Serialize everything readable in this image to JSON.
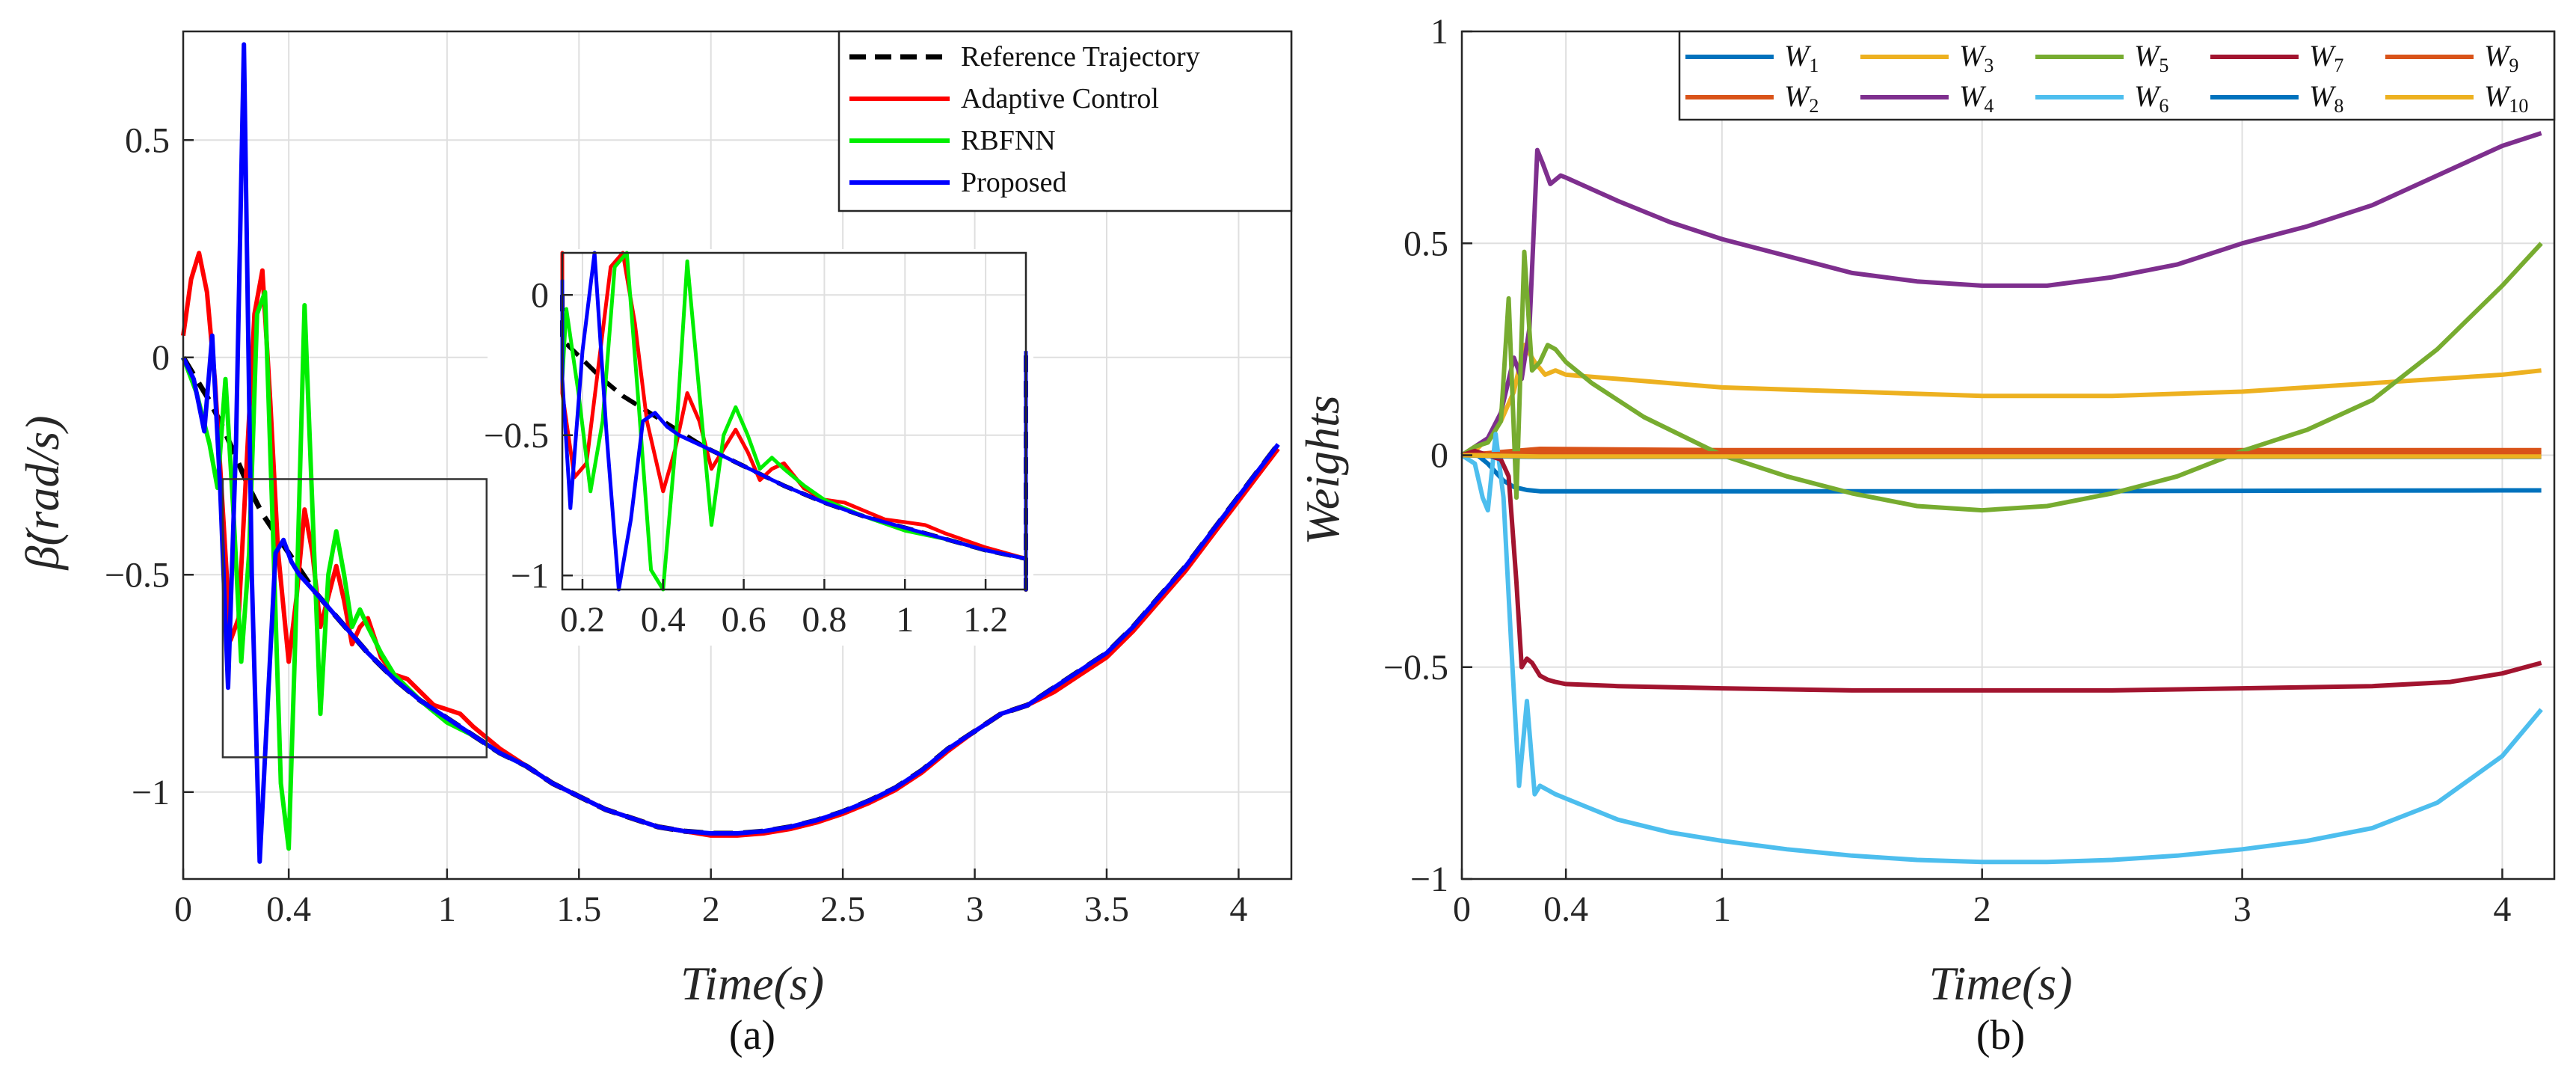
{
  "chart_data": [
    {
      "type": "line",
      "panel": "a",
      "caption": "(a)",
      "title": "",
      "xlabel": "Time(s)",
      "ylabel": "β̇(rad/s)",
      "xlim": [
        0,
        4.2
      ],
      "ylim": [
        -1.2,
        0.75
      ],
      "xticks": [
        0,
        0.4,
        1,
        1.5,
        2,
        2.5,
        3,
        3.5,
        4
      ],
      "xtick_labels": [
        "0",
        "0.4",
        "1",
        "1.5",
        "2",
        "2.5",
        "3",
        "3.5",
        "4"
      ],
      "yticks": [
        -1,
        -0.5,
        0,
        0.5
      ],
      "ytick_labels": [
        "−1",
        "−0.5",
        "0",
        "0.5"
      ],
      "grid": true,
      "legend_position": "top-right",
      "series": [
        {
          "name": "Reference Trajectory",
          "color": "#000000",
          "dash": true,
          "x": [
            0.0,
            0.05,
            0.1,
            0.15,
            0.2,
            0.25,
            0.3,
            0.4,
            0.5,
            0.6,
            0.7,
            0.8,
            0.9,
            1.0,
            1.1,
            1.2,
            1.3,
            1.4,
            1.5,
            1.6,
            1.7,
            1.8,
            1.9,
            2.0,
            2.1,
            2.2,
            2.3,
            2.4,
            2.5,
            2.6,
            2.7,
            2.8,
            2.9,
            3.0,
            3.1,
            3.2,
            3.3,
            3.4,
            3.5,
            3.6,
            3.7,
            3.8,
            3.9,
            4.0,
            4.1,
            4.15
          ],
          "y": [
            0.0,
            -0.05,
            -0.1,
            -0.16,
            -0.23,
            -0.3,
            -0.36,
            -0.45,
            -0.54,
            -0.61,
            -0.68,
            -0.74,
            -0.79,
            -0.83,
            -0.87,
            -0.91,
            -0.94,
            -0.98,
            -1.01,
            -1.04,
            -1.06,
            -1.08,
            -1.09,
            -1.095,
            -1.095,
            -1.09,
            -1.08,
            -1.065,
            -1.045,
            -1.02,
            -0.99,
            -0.95,
            -0.9,
            -0.86,
            -0.82,
            -0.8,
            -0.76,
            -0.72,
            -0.68,
            -0.62,
            -0.55,
            -0.48,
            -0.4,
            -0.32,
            -0.24,
            -0.2
          ]
        },
        {
          "name": "Adaptive Control",
          "color": "#ff0000",
          "dash": false,
          "x": [
            0.0,
            0.03,
            0.06,
            0.09,
            0.12,
            0.15,
            0.18,
            0.21,
            0.24,
            0.27,
            0.3,
            0.33,
            0.36,
            0.4,
            0.43,
            0.46,
            0.49,
            0.52,
            0.55,
            0.58,
            0.61,
            0.64,
            0.67,
            0.7,
            0.75,
            0.8,
            0.85,
            0.9,
            0.95,
            1.0,
            1.05,
            1.1,
            1.2,
            1.3,
            1.4,
            1.5,
            1.6,
            1.7,
            1.8,
            1.9,
            2.0,
            2.1,
            2.2,
            2.3,
            2.4,
            2.5,
            2.6,
            2.7,
            2.8,
            2.9,
            3.0,
            3.1,
            3.2,
            3.3,
            3.4,
            3.5,
            3.6,
            3.7,
            3.8,
            3.9,
            4.0,
            4.1,
            4.15
          ],
          "y": [
            0.05,
            0.18,
            0.24,
            0.15,
            -0.05,
            -0.35,
            -0.65,
            -0.6,
            -0.25,
            0.1,
            0.2,
            -0.1,
            -0.45,
            -0.7,
            -0.55,
            -0.35,
            -0.45,
            -0.62,
            -0.55,
            -0.48,
            -0.56,
            -0.66,
            -0.62,
            -0.6,
            -0.69,
            -0.73,
            -0.74,
            -0.77,
            -0.8,
            -0.81,
            -0.82,
            -0.85,
            -0.9,
            -0.94,
            -0.98,
            -1.01,
            -1.04,
            -1.06,
            -1.08,
            -1.09,
            -1.1,
            -1.1,
            -1.095,
            -1.085,
            -1.07,
            -1.05,
            -1.025,
            -0.995,
            -0.955,
            -0.905,
            -0.86,
            -0.82,
            -0.8,
            -0.77,
            -0.73,
            -0.69,
            -0.63,
            -0.56,
            -0.49,
            -0.41,
            -0.33,
            -0.25,
            -0.21
          ]
        },
        {
          "name": "RBFNN",
          "color": "#00ee00",
          "dash": false,
          "x": [
            0.0,
            0.05,
            0.1,
            0.13,
            0.16,
            0.19,
            0.22,
            0.25,
            0.28,
            0.31,
            0.34,
            0.37,
            0.4,
            0.43,
            0.46,
            0.49,
            0.52,
            0.55,
            0.58,
            0.61,
            0.64,
            0.67,
            0.7,
            0.75,
            0.8,
            0.85,
            0.9,
            1.0,
            1.1,
            1.2,
            1.3
          ],
          "y": [
            0.0,
            -0.08,
            -0.2,
            -0.3,
            -0.05,
            -0.35,
            -0.7,
            -0.45,
            0.1,
            0.15,
            -0.4,
            -0.98,
            -1.13,
            -0.55,
            0.12,
            -0.35,
            -0.82,
            -0.5,
            -0.4,
            -0.5,
            -0.62,
            -0.58,
            -0.62,
            -0.68,
            -0.73,
            -0.76,
            -0.79,
            -0.84,
            -0.87,
            -0.91,
            -0.94
          ]
        },
        {
          "name": "Proposed",
          "color": "#0000ff",
          "dash": false,
          "x": [
            0.0,
            0.04,
            0.08,
            0.11,
            0.14,
            0.17,
            0.2,
            0.23,
            0.26,
            0.29,
            0.32,
            0.35,
            0.38,
            0.41,
            0.44,
            0.47,
            0.5,
            0.6,
            0.7,
            0.8,
            0.9,
            1.0,
            1.1,
            1.2,
            1.3,
            1.4,
            1.5,
            1.6,
            1.7,
            1.8,
            1.9,
            2.0,
            2.1,
            2.2,
            2.3,
            2.4,
            2.5,
            2.6,
            2.7,
            2.8,
            2.9,
            3.0,
            3.1,
            3.2,
            3.3,
            3.4,
            3.5,
            3.6,
            3.7,
            3.8,
            3.9,
            4.0,
            4.1,
            4.15
          ],
          "y": [
            0.0,
            -0.05,
            -0.17,
            0.05,
            -0.3,
            -0.76,
            -0.2,
            0.72,
            -0.5,
            -1.16,
            -0.8,
            -0.45,
            -0.42,
            -0.47,
            -0.5,
            -0.52,
            -0.54,
            -0.61,
            -0.68,
            -0.74,
            -0.79,
            -0.83,
            -0.87,
            -0.91,
            -0.94,
            -0.98,
            -1.01,
            -1.04,
            -1.06,
            -1.08,
            -1.09,
            -1.095,
            -1.095,
            -1.09,
            -1.08,
            -1.065,
            -1.045,
            -1.02,
            -0.99,
            -0.95,
            -0.9,
            -0.86,
            -0.82,
            -0.8,
            -0.76,
            -0.72,
            -0.68,
            -0.62,
            -0.55,
            -0.48,
            -0.4,
            -0.32,
            -0.24,
            -0.2
          ]
        }
      ],
      "inset": {
        "xlim": [
          0.15,
          1.3
        ],
        "ylim": [
          -1.05,
          0.15
        ],
        "xticks": [
          0.2,
          0.4,
          0.6,
          0.8,
          1,
          1.2
        ],
        "xtick_labels": [
          "0.2",
          "0.4",
          "0.6",
          "0.8",
          "1",
          "1.2"
        ],
        "yticks": [
          -1,
          -0.5,
          0
        ],
        "ytick_labels": [
          "−1",
          "−0.5",
          "0"
        ],
        "zoom_region": {
          "x": [
            0.15,
            1.15
          ],
          "y": [
            -0.92,
            -0.28
          ]
        }
      }
    },
    {
      "type": "line",
      "panel": "b",
      "caption": "(b)",
      "title": "",
      "xlabel": "Time(s)",
      "ylabel": "Weights",
      "xlim": [
        0,
        4.2
      ],
      "ylim": [
        -1,
        1
      ],
      "xticks": [
        0,
        0.4,
        1,
        2,
        3,
        4
      ],
      "xtick_labels": [
        "0",
        "0.4",
        "1",
        "2",
        "3",
        "4"
      ],
      "yticks": [
        -1,
        -0.5,
        0,
        0.5,
        1
      ],
      "ytick_labels": [
        "−1",
        "−0.5",
        "0",
        "0.5",
        "1"
      ],
      "grid": true,
      "legend_position": "top",
      "series": [
        {
          "name": "W",
          "sub": "1",
          "color": "#0072bd",
          "x": [
            0,
            0.05,
            0.1,
            0.13,
            0.16,
            0.2,
            0.25,
            0.3,
            0.4,
            1.0,
            2.0,
            3.0,
            4.0,
            4.15
          ],
          "y": [
            0,
            0.005,
            -0.02,
            -0.04,
            -0.06,
            -0.075,
            -0.082,
            -0.085,
            -0.085,
            -0.085,
            -0.085,
            -0.084,
            -0.083,
            -0.083
          ]
        },
        {
          "name": "W",
          "sub": "2",
          "color": "#d95319",
          "x": [
            0,
            0.1,
            0.2,
            0.3,
            1.0,
            2.0,
            3.0,
            4.15
          ],
          "y": [
            0,
            0.005,
            0.01,
            0.015,
            0.012,
            0.012,
            0.012,
            0.012
          ]
        },
        {
          "name": "W",
          "sub": "3",
          "color": "#edb120",
          "x": [
            0,
            0.05,
            0.1,
            0.15,
            0.2,
            0.24,
            0.28,
            0.32,
            0.36,
            0.4,
            0.6,
            1.0,
            1.5,
            2.0,
            2.5,
            3.0,
            3.5,
            4.0,
            4.15
          ],
          "y": [
            0,
            0.01,
            0.04,
            0.08,
            0.15,
            0.26,
            0.22,
            0.19,
            0.2,
            0.19,
            0.18,
            0.16,
            0.15,
            0.14,
            0.14,
            0.15,
            0.17,
            0.19,
            0.2
          ]
        },
        {
          "name": "W",
          "sub": "4",
          "color": "#7e2f8e",
          "x": [
            0,
            0.05,
            0.1,
            0.15,
            0.2,
            0.23,
            0.26,
            0.29,
            0.31,
            0.34,
            0.38,
            0.4,
            0.6,
            0.8,
            1.0,
            1.25,
            1.5,
            1.75,
            2.0,
            2.25,
            2.5,
            2.75,
            3.0,
            3.25,
            3.5,
            3.75,
            4.0,
            4.15
          ],
          "y": [
            0,
            0.02,
            0.04,
            0.1,
            0.23,
            0.18,
            0.3,
            0.72,
            0.69,
            0.64,
            0.66,
            0.655,
            0.6,
            0.55,
            0.51,
            0.47,
            0.43,
            0.41,
            0.4,
            0.4,
            0.42,
            0.45,
            0.5,
            0.54,
            0.59,
            0.66,
            0.73,
            0.76
          ]
        },
        {
          "name": "W",
          "sub": "5",
          "color": "#77ac30",
          "x": [
            0,
            0.05,
            0.1,
            0.15,
            0.18,
            0.21,
            0.24,
            0.27,
            0.3,
            0.33,
            0.36,
            0.4,
            0.5,
            0.7,
            1.0,
            1.25,
            1.5,
            1.75,
            2.0,
            2.25,
            2.5,
            2.75,
            3.0,
            3.25,
            3.5,
            3.75,
            4.0,
            4.15
          ],
          "y": [
            0,
            0.02,
            0.03,
            0.08,
            0.37,
            -0.1,
            0.48,
            0.2,
            0.22,
            0.26,
            0.25,
            0.22,
            0.17,
            0.09,
            0.0,
            -0.05,
            -0.09,
            -0.12,
            -0.13,
            -0.12,
            -0.09,
            -0.05,
            0.01,
            0.06,
            0.13,
            0.25,
            0.4,
            0.5
          ]
        },
        {
          "name": "W",
          "sub": "6",
          "color": "#4dbeee",
          "x": [
            0,
            0.05,
            0.08,
            0.1,
            0.13,
            0.16,
            0.19,
            0.22,
            0.25,
            0.28,
            0.3,
            0.33,
            0.36,
            0.4,
            0.6,
            0.8,
            1.0,
            1.25,
            1.5,
            1.75,
            2.0,
            2.25,
            2.5,
            2.75,
            3.0,
            3.25,
            3.5,
            3.75,
            4.0,
            4.15
          ],
          "y": [
            0,
            -0.02,
            -0.1,
            -0.13,
            0.05,
            -0.1,
            -0.45,
            -0.78,
            -0.58,
            -0.8,
            -0.78,
            -0.79,
            -0.8,
            -0.81,
            -0.86,
            -0.89,
            -0.91,
            -0.93,
            -0.945,
            -0.955,
            -0.96,
            -0.96,
            -0.955,
            -0.945,
            -0.93,
            -0.91,
            -0.88,
            -0.82,
            -0.71,
            -0.6
          ]
        },
        {
          "name": "W",
          "sub": "7",
          "color": "#a2142f",
          "x": [
            0,
            0.05,
            0.1,
            0.15,
            0.18,
            0.21,
            0.23,
            0.25,
            0.27,
            0.3,
            0.33,
            0.36,
            0.4,
            0.6,
            1.0,
            1.5,
            2.0,
            2.5,
            3.0,
            3.5,
            3.8,
            4.0,
            4.15
          ],
          "y": [
            0,
            0.01,
            0.0,
            -0.01,
            -0.05,
            -0.3,
            -0.5,
            -0.48,
            -0.49,
            -0.52,
            -0.53,
            -0.535,
            -0.54,
            -0.545,
            -0.55,
            -0.555,
            -0.555,
            -0.555,
            -0.55,
            -0.545,
            -0.535,
            -0.515,
            -0.49
          ]
        },
        {
          "name": "W",
          "sub": "8",
          "color": "#0072bd",
          "x": [
            0,
            0.1,
            0.2,
            0.3,
            1.0,
            2.0,
            3.0,
            4.15
          ],
          "y": [
            0,
            -0.002,
            -0.003,
            -0.004,
            -0.004,
            -0.004,
            -0.004,
            -0.004
          ]
        },
        {
          "name": "W",
          "sub": "9",
          "color": "#d95319",
          "x": [
            0,
            0.1,
            0.2,
            0.3,
            1.0,
            2.0,
            3.0,
            4.15
          ],
          "y": [
            0,
            0.002,
            0.004,
            0.005,
            0.004,
            0.004,
            0.004,
            0.004
          ]
        },
        {
          "name": "W",
          "sub": "10",
          "color": "#edb120",
          "x": [
            0,
            0.1,
            0.2,
            0.3,
            1.0,
            2.0,
            3.0,
            4.15
          ],
          "y": [
            0,
            -0.001,
            -0.002,
            -0.003,
            -0.003,
            -0.003,
            -0.003,
            -0.003
          ]
        }
      ]
    }
  ]
}
